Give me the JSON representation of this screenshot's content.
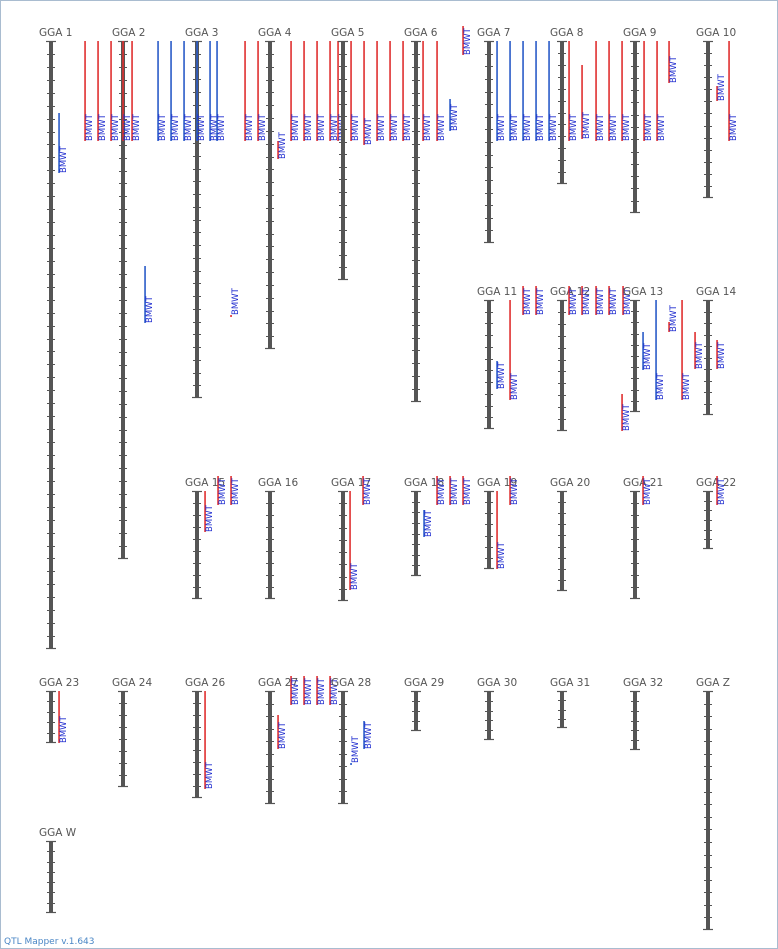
{
  "app": {
    "version_label": "QTL Mapper v.1.643"
  },
  "colors": {
    "qtl_red": "#e03030",
    "qtl_blue": "#2a5cc8",
    "chromosome": "#555555",
    "label": "#1f2ccf",
    "footer": "#4a86c5"
  },
  "qtl_label": "BMWT",
  "chromosomes": [
    {
      "name": "GGA 1",
      "qtls": [
        {
          "color": "blue"
        }
      ]
    },
    {
      "name": "GGA 2",
      "qtls": [
        {
          "color": "red"
        },
        {
          "color": "red"
        },
        {
          "color": "red"
        },
        {
          "color": "red"
        },
        {
          "color": "red"
        },
        {
          "color": "blue"
        }
      ]
    },
    {
      "name": "GGA 3",
      "qtls": [
        {
          "color": "blue"
        },
        {
          "color": "blue"
        },
        {
          "color": "blue"
        },
        {
          "color": "blue"
        },
        {
          "color": "blue"
        },
        {
          "color": "blue"
        },
        {
          "color": "red"
        }
      ]
    },
    {
      "name": "GGA 4",
      "qtls": [
        {
          "color": "red"
        },
        {
          "color": "red"
        },
        {
          "color": "red"
        },
        {
          "color": "red"
        },
        {
          "color": "red"
        },
        {
          "color": "red"
        },
        {
          "color": "red"
        },
        {
          "color": "red"
        }
      ]
    },
    {
      "name": "GGA 5",
      "qtls": [
        {
          "color": "red"
        },
        {
          "color": "red"
        },
        {
          "color": "red"
        },
        {
          "color": "red"
        },
        {
          "color": "red"
        },
        {
          "color": "red"
        }
      ]
    },
    {
      "name": "GGA 6",
      "qtls": [
        {
          "color": "blue"
        },
        {
          "color": "red"
        }
      ]
    },
    {
      "name": "GGA 7",
      "qtls": [
        {
          "color": "red"
        },
        {
          "color": "blue"
        },
        {
          "color": "blue"
        },
        {
          "color": "blue"
        },
        {
          "color": "blue"
        },
        {
          "color": "blue"
        }
      ]
    },
    {
      "name": "GGA 8",
      "qtls": [
        {
          "color": "red"
        },
        {
          "color": "red"
        },
        {
          "color": "red"
        },
        {
          "color": "red"
        }
      ]
    },
    {
      "name": "GGA 9",
      "qtls": [
        {
          "color": "red"
        },
        {
          "color": "red"
        },
        {
          "color": "red"
        }
      ]
    },
    {
      "name": "GGA 10",
      "qtls": [
        {
          "color": "red"
        },
        {
          "color": "red"
        },
        {
          "color": "red"
        }
      ]
    },
    {
      "name": "GGA 11",
      "qtls": [
        {
          "color": "blue"
        },
        {
          "color": "red"
        },
        {
          "color": "red"
        },
        {
          "color": "red"
        }
      ]
    },
    {
      "name": "GGA 12",
      "qtls": [
        {
          "color": "red"
        },
        {
          "color": "red"
        },
        {
          "color": "red"
        },
        {
          "color": "red"
        },
        {
          "color": "red"
        }
      ]
    },
    {
      "name": "GGA 13",
      "qtls": [
        {
          "color": "red"
        },
        {
          "color": "blue"
        },
        {
          "color": "blue"
        },
        {
          "color": "red"
        }
      ]
    },
    {
      "name": "GGA 14",
      "qtls": [
        {
          "color": "red"
        },
        {
          "color": "red"
        },
        {
          "color": "red"
        }
      ]
    },
    {
      "name": "GGA 15",
      "qtls": [
        {
          "color": "red"
        },
        {
          "color": "red"
        },
        {
          "color": "red"
        }
      ]
    },
    {
      "name": "GGA 16",
      "qtls": []
    },
    {
      "name": "GGA 17",
      "qtls": [
        {
          "color": "red"
        },
        {
          "color": "red"
        }
      ]
    },
    {
      "name": "GGA 18",
      "qtls": [
        {
          "color": "blue"
        },
        {
          "color": "red"
        },
        {
          "color": "red"
        },
        {
          "color": "red"
        }
      ]
    },
    {
      "name": "GGA 19",
      "qtls": [
        {
          "color": "red"
        },
        {
          "color": "red"
        }
      ]
    },
    {
      "name": "GGA 20",
      "qtls": []
    },
    {
      "name": "GGA 21",
      "qtls": [
        {
          "color": "red"
        }
      ]
    },
    {
      "name": "GGA 22",
      "qtls": [
        {
          "color": "red"
        }
      ]
    },
    {
      "name": "GGA 23",
      "qtls": [
        {
          "color": "red"
        }
      ]
    },
    {
      "name": "GGA 24",
      "qtls": []
    },
    {
      "name": "GGA 26",
      "qtls": [
        {
          "color": "red"
        }
      ]
    },
    {
      "name": "GGA 27",
      "qtls": [
        {
          "color": "red"
        },
        {
          "color": "red"
        },
        {
          "color": "red"
        },
        {
          "color": "red"
        },
        {
          "color": "red"
        }
      ]
    },
    {
      "name": "GGA 28",
      "qtls": [
        {
          "color": "blue"
        },
        {
          "color": "blue"
        }
      ]
    },
    {
      "name": "GGA 29",
      "qtls": []
    },
    {
      "name": "GGA 30",
      "qtls": []
    },
    {
      "name": "GGA 31",
      "qtls": []
    },
    {
      "name": "GGA 32",
      "qtls": []
    },
    {
      "name": "GGA Z",
      "qtls": []
    },
    {
      "name": "GGA W",
      "qtls": []
    }
  ]
}
